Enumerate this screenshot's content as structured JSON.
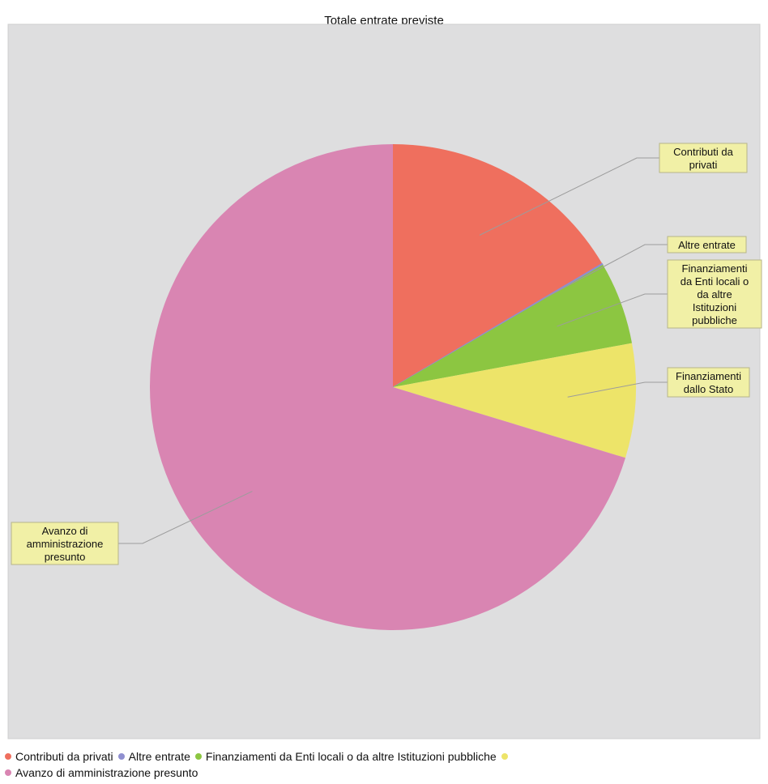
{
  "chart_data": {
    "type": "pie",
    "title": "Totale entrate previste",
    "slices": [
      {
        "label_lines": [
          "Contributi da",
          "privati"
        ],
        "legend": "Contributi da privati",
        "value": 16.5,
        "color": "#ef6f5e"
      },
      {
        "label_lines": [
          "Altre entrate"
        ],
        "legend": "Altre entrate",
        "value": 0.1,
        "color": "#8f8fd0"
      },
      {
        "label_lines": [
          "Finanziamenti",
          "da Enti locali o",
          "da altre",
          "Istituzioni",
          "pubbliche"
        ],
        "legend": "Finanziamenti da Enti locali o da altre Istituzioni pubbliche",
        "value": 5.5,
        "color": "#8cc641"
      },
      {
        "label_lines": [
          "Finanziamenti",
          "dallo Stato"
        ],
        "legend": "",
        "value": 7.6,
        "color": "#ede469"
      },
      {
        "label_lines": [
          "Avanzo di",
          "amministrazione",
          "presunto"
        ],
        "legend": "Avanzo di amministrazione presunto",
        "value": 70.3,
        "color": "#d985b2"
      }
    ],
    "legend_placement": "bottom"
  }
}
